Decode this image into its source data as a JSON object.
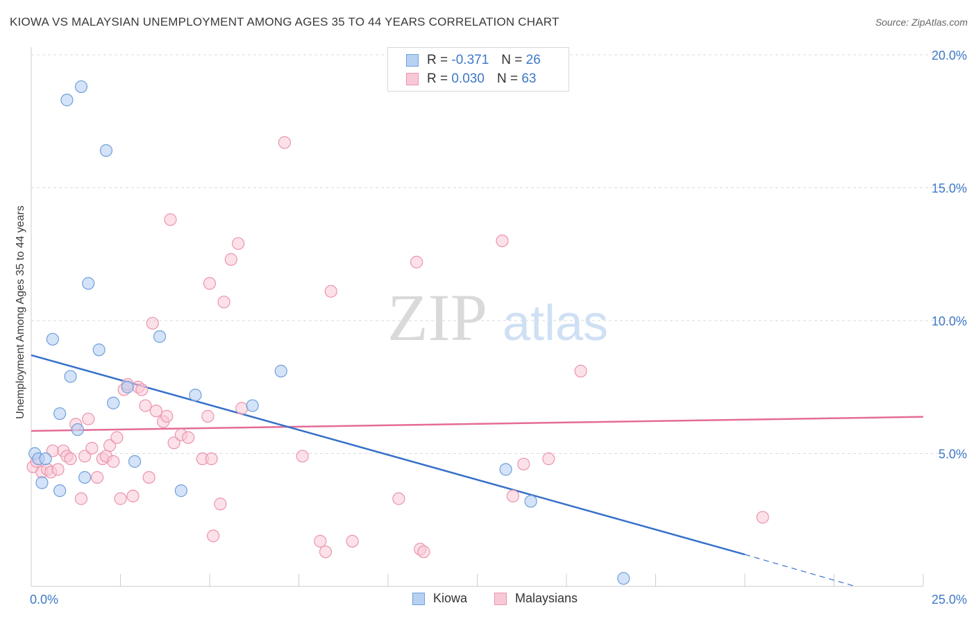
{
  "title": "KIOWA VS MALAYSIAN UNEMPLOYMENT AMONG AGES 35 TO 44 YEARS CORRELATION CHART",
  "source": "Source: ZipAtlas.com",
  "watermark": {
    "zip": "ZIP",
    "atlas": "atlas"
  },
  "legend": {
    "kiowa": {
      "r_label": "R = ",
      "r_value": "-0.371",
      "n_label": "N = ",
      "n_value": "26"
    },
    "malaysians": {
      "r_label": "R = ",
      "r_value": "0.030",
      "n_label": "N = ",
      "n_value": "63"
    }
  },
  "bottom_legend": {
    "kiowa": "Kiowa",
    "malaysians": "Malaysians"
  },
  "colors": {
    "kiowa_fill": "#b7d1f3",
    "kiowa_stroke": "#6e9fdb",
    "kiowa_line": "#3670c9",
    "malay_fill": "#f9c8d6",
    "malay_stroke": "#ea94ad",
    "malay_line": "#e56b97",
    "axis_text": "#3c78c8",
    "grid": "#d9d9d9"
  },
  "chart_data": {
    "type": "scatter",
    "title": "KIOWA VS MALAYSIAN UNEMPLOYMENT AMONG AGES 35 TO 44 YEARS CORRELATION CHART",
    "xlabel": "",
    "ylabel": "Unemployment Among Ages 35 to 44 years",
    "xlim": [
      0,
      25
    ],
    "ylim": [
      0,
      20
    ],
    "x_tick_labels": [
      "0.0%",
      "25.0%"
    ],
    "y_ticks": [
      5,
      10,
      15,
      20
    ],
    "y_tick_labels": [
      "5.0%",
      "10.0%",
      "15.0%",
      "20.0%"
    ],
    "grid": true,
    "series": [
      {
        "name": "Kiowa",
        "points": [
          [
            0.1,
            5.0
          ],
          [
            0.2,
            4.8
          ],
          [
            0.4,
            4.8
          ],
          [
            0.3,
            3.9
          ],
          [
            0.8,
            3.6
          ],
          [
            0.6,
            9.3
          ],
          [
            0.8,
            6.5
          ],
          [
            1.0,
            18.3
          ],
          [
            1.4,
            18.8
          ],
          [
            1.1,
            7.9
          ],
          [
            1.3,
            5.9
          ],
          [
            1.5,
            4.1
          ],
          [
            1.6,
            11.4
          ],
          [
            1.9,
            8.9
          ],
          [
            2.1,
            16.4
          ],
          [
            2.3,
            6.9
          ],
          [
            2.7,
            7.5
          ],
          [
            2.9,
            4.7
          ],
          [
            3.6,
            9.4
          ],
          [
            4.2,
            3.6
          ],
          [
            4.6,
            7.2
          ],
          [
            6.2,
            6.8
          ],
          [
            7.0,
            8.1
          ],
          [
            13.3,
            4.4
          ],
          [
            14.0,
            3.2
          ],
          [
            16.6,
            0.3
          ]
        ],
        "trend": {
          "x": [
            0,
            20
          ],
          "y": [
            8.7,
            1.2
          ]
        },
        "trend_dashed": {
          "x": [
            20,
            23.1
          ],
          "y": [
            1.2,
            0.0
          ]
        }
      },
      {
        "name": "Malaysians",
        "points": [
          [
            0.05,
            4.5
          ],
          [
            0.15,
            4.7
          ],
          [
            0.3,
            4.3
          ],
          [
            0.45,
            4.4
          ],
          [
            0.55,
            4.3
          ],
          [
            0.6,
            5.1
          ],
          [
            0.75,
            4.4
          ],
          [
            0.9,
            5.1
          ],
          [
            1.0,
            4.9
          ],
          [
            1.1,
            4.8
          ],
          [
            1.25,
            6.1
          ],
          [
            1.4,
            3.3
          ],
          [
            1.5,
            4.9
          ],
          [
            1.6,
            6.3
          ],
          [
            1.7,
            5.2
          ],
          [
            1.85,
            4.1
          ],
          [
            2.0,
            4.8
          ],
          [
            2.1,
            4.9
          ],
          [
            2.2,
            5.3
          ],
          [
            2.3,
            4.7
          ],
          [
            2.4,
            5.6
          ],
          [
            2.5,
            3.3
          ],
          [
            2.6,
            7.4
          ],
          [
            2.7,
            7.6
          ],
          [
            2.85,
            3.4
          ],
          [
            3.0,
            7.5
          ],
          [
            3.1,
            7.4
          ],
          [
            3.2,
            6.8
          ],
          [
            3.3,
            4.1
          ],
          [
            3.4,
            9.9
          ],
          [
            3.5,
            6.6
          ],
          [
            3.7,
            6.2
          ],
          [
            3.8,
            6.4
          ],
          [
            3.9,
            13.8
          ],
          [
            4.0,
            5.4
          ],
          [
            4.2,
            5.7
          ],
          [
            4.4,
            5.6
          ],
          [
            4.8,
            4.8
          ],
          [
            4.95,
            6.4
          ],
          [
            5.05,
            4.8
          ],
          [
            5.0,
            11.4
          ],
          [
            5.1,
            1.9
          ],
          [
            5.3,
            3.1
          ],
          [
            5.4,
            10.7
          ],
          [
            5.6,
            12.3
          ],
          [
            5.8,
            12.9
          ],
          [
            5.9,
            6.7
          ],
          [
            7.1,
            16.7
          ],
          [
            7.6,
            4.9
          ],
          [
            8.1,
            1.7
          ],
          [
            8.25,
            1.3
          ],
          [
            8.4,
            11.1
          ],
          [
            9.0,
            1.7
          ],
          [
            10.3,
            3.3
          ],
          [
            10.8,
            12.2
          ],
          [
            10.9,
            1.4
          ],
          [
            11.0,
            1.3
          ],
          [
            13.2,
            13.0
          ],
          [
            13.5,
            3.4
          ],
          [
            13.8,
            4.6
          ],
          [
            14.5,
            4.8
          ],
          [
            15.4,
            8.1
          ],
          [
            20.5,
            2.6
          ]
        ],
        "trend": {
          "x": [
            0,
            25
          ],
          "y": [
            5.85,
            6.38
          ]
        }
      }
    ]
  }
}
